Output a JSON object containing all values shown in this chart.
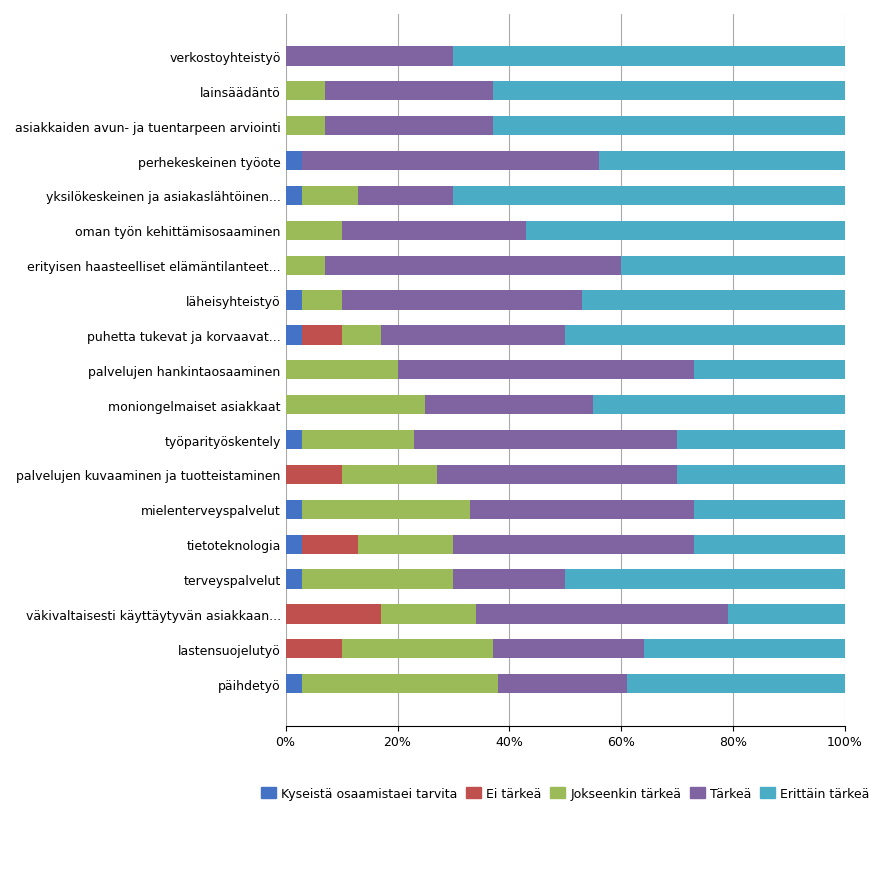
{
  "categories": [
    "verkostoyhteistyö",
    "lainsäädäntö",
    "asiakkaiden avun- ja tuentarpeen arviointi",
    "perhekeskeinen työote",
    "yksilökeskeinen ja asiakaslähtöinen...",
    "oman työn kehittämisosaaminen",
    "erityisen haasteelliset elämäntilanteet...",
    "läheisyhteistyö",
    "puhetta tukevat ja korvaavat...",
    "palvelujen hankintaosaaminen",
    "moniongelmaiset asiakkaat",
    "työparityöskentely",
    "palvelujen kuvaaminen ja tuotteistaminen",
    "mielenterveyspalvelut",
    "tietoteknologia",
    "terveyspalvelut",
    "väkivaltaisesti käyttäytyvän asiakkaan...",
    "lastensuojelutyö",
    "päihdetyö"
  ],
  "series_names": [
    "Kyseistä osaamistaei tarvita",
    "Ei tärkeä",
    "Jokseenkin tärkeä",
    "Tärkeä",
    "Erittäin tärkeä"
  ],
  "series_values": [
    [
      0,
      0,
      0,
      3,
      3,
      0,
      0,
      3,
      3,
      0,
      0,
      3,
      0,
      3,
      3,
      3,
      0,
      0,
      3
    ],
    [
      0,
      0,
      0,
      0,
      0,
      0,
      0,
      0,
      7,
      0,
      0,
      0,
      10,
      0,
      10,
      0,
      17,
      10,
      0
    ],
    [
      0,
      7,
      7,
      0,
      10,
      10,
      7,
      7,
      7,
      20,
      25,
      20,
      17,
      30,
      17,
      27,
      17,
      27,
      35
    ],
    [
      30,
      30,
      30,
      53,
      17,
      33,
      53,
      43,
      33,
      53,
      30,
      47,
      43,
      40,
      43,
      20,
      45,
      27,
      23
    ],
    [
      70,
      63,
      63,
      44,
      70,
      57,
      40,
      47,
      50,
      27,
      45,
      30,
      30,
      27,
      27,
      50,
      21,
      36,
      39
    ]
  ],
  "colors": [
    "#4472C4",
    "#C0504D",
    "#9BBB59",
    "#8064A2",
    "#4BACC6"
  ],
  "legend_labels": [
    "Kyseistä osaamistaei tarvita",
    "Ei tärkeä",
    "Jokseenkin tärkeä",
    "Tärkeä",
    "Erittäin tärkeä"
  ],
  "xlim": [
    0,
    100
  ],
  "xticks": [
    0,
    20,
    40,
    60,
    80,
    100
  ],
  "xticklabels": [
    "0%",
    "20%",
    "40%",
    "60%",
    "80%",
    "100%"
  ],
  "background_color": "#ffffff",
  "bar_height": 0.55,
  "fontsize_labels": 9,
  "fontsize_ticks": 9,
  "fontsize_legend": 9
}
